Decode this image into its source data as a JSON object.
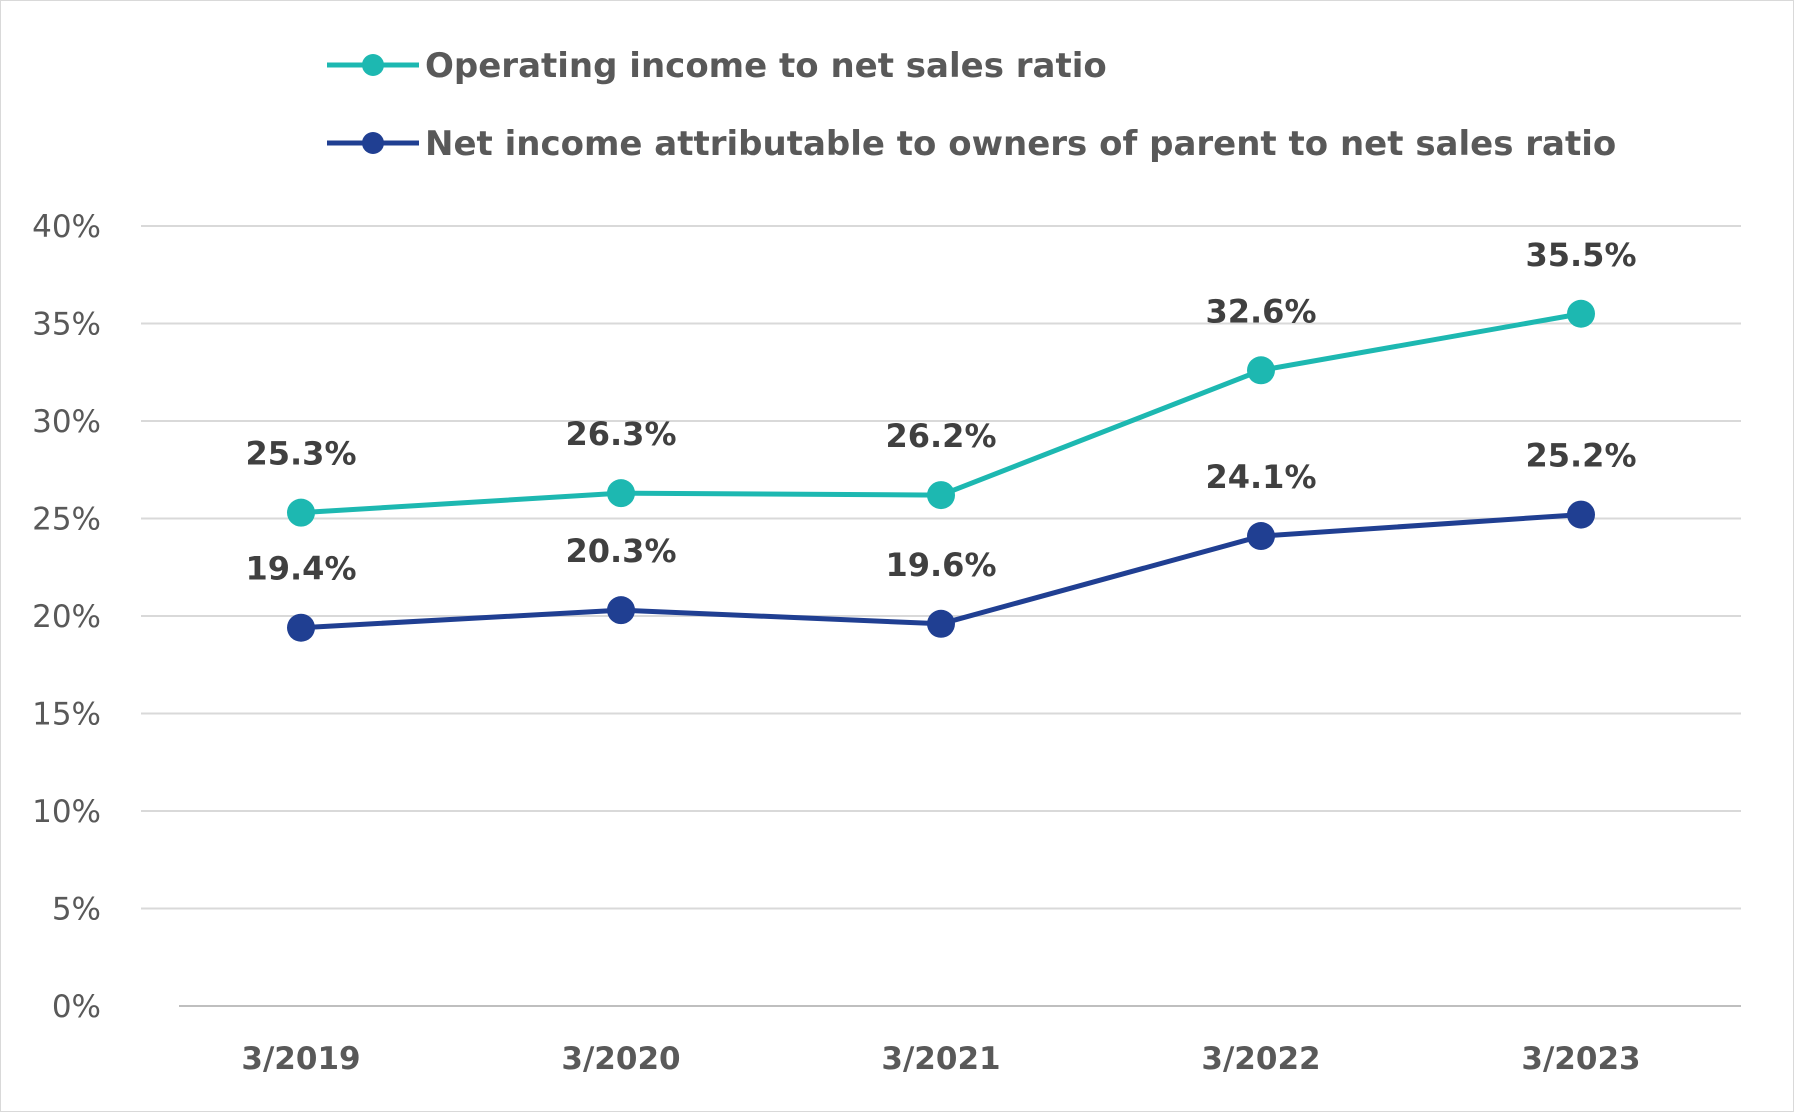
{
  "chart_data": {
    "type": "line",
    "categories": [
      "3/2019",
      "3/2020",
      "3/2021",
      "3/2022",
      "3/2023"
    ],
    "series": [
      {
        "name": "Operating income to net sales ratio",
        "values": [
          25.3,
          26.3,
          26.2,
          32.6,
          35.5
        ],
        "labels": [
          "25.3%",
          "26.3%",
          "26.2%",
          "32.6%",
          "35.5%"
        ],
        "color": "#1DB8B1"
      },
      {
        "name": "Net income attributable to owners of parent to net sales ratio",
        "values": [
          19.4,
          20.3,
          19.6,
          24.1,
          25.2
        ],
        "labels": [
          "19.4%",
          "20.3%",
          "19.6%",
          "24.1%",
          "25.2%"
        ],
        "color": "#203F92"
      }
    ],
    "y_ticks": [
      0,
      5,
      10,
      15,
      20,
      25,
      30,
      35,
      40
    ],
    "y_tick_labels": [
      "0%",
      "5%",
      "10%",
      "15%",
      "20%",
      "25%",
      "30%",
      "35%",
      "40%"
    ],
    "ylim": [
      0,
      40
    ],
    "grid": true,
    "legend_position": "top"
  }
}
